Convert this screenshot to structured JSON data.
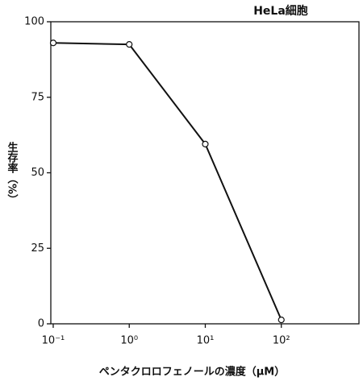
{
  "chart_data": {
    "type": "line",
    "title": "HeLa細胞",
    "x_label": "ペンタクロロフェノールの濃度（μM）",
    "y_label": "生存率（%）",
    "xscale": "log",
    "x": [
      0.1,
      1,
      10,
      100
    ],
    "series": [
      {
        "name": "HeLa",
        "color": "#111111",
        "values": [
          93,
          92.5,
          59.5,
          1.3
        ]
      }
    ],
    "xlim": [
      0.093,
      1050
    ],
    "ylim": [
      0,
      100
    ],
    "xticks": [
      {
        "value": 0.1,
        "label": "10⁻¹"
      },
      {
        "value": 1,
        "label": "10⁰"
      },
      {
        "value": 10,
        "label": "10¹"
      },
      {
        "value": 100,
        "label": "10²"
      }
    ],
    "yticks": [
      0,
      25,
      50,
      75,
      100
    ],
    "grid": false
  }
}
